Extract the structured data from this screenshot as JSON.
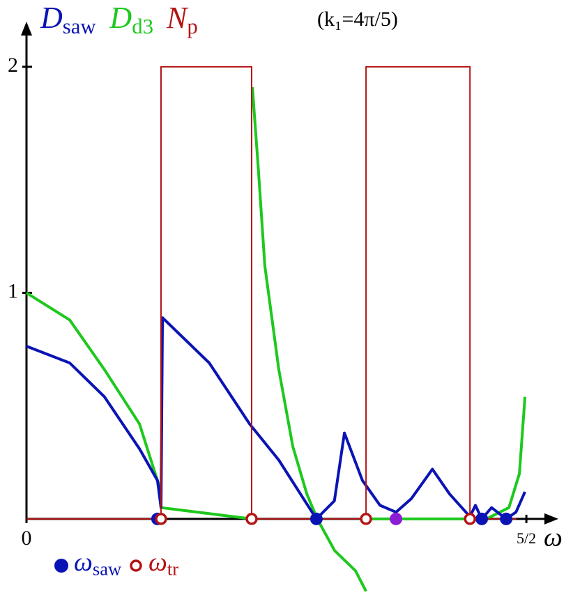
{
  "chart_data": {
    "type": "line",
    "annotation": "(k₁=4π/5)",
    "x_label": "ω",
    "xlim": [
      0,
      2.66
    ],
    "ylim": [
      -0.33,
      2.2
    ],
    "xticks": [
      0,
      {
        "value": 2.5,
        "label": "5/2"
      }
    ],
    "yticks": [
      1,
      2
    ],
    "series": [
      {
        "name": "Dsaw",
        "color": "#0a14b4",
        "x": [
          0,
          0.216,
          0.39,
          0.565,
          0.655,
          0.673,
          0.68,
          0.914,
          1.116,
          1.262,
          1.45,
          1.54,
          1.59,
          1.68,
          1.768,
          1.848,
          1.925,
          2.03,
          2.116,
          2.218,
          2.245,
          2.277,
          2.326,
          2.399,
          2.448,
          2.493
        ],
        "values": [
          0.764,
          0.69,
          0.54,
          0.31,
          0.17,
          0.05,
          0.89,
          0.69,
          0.42,
          0.26,
          0,
          0.08,
          0.38,
          0.17,
          0.06,
          0.03,
          0.09,
          0.22,
          0.11,
          0.01,
          0.06,
          0,
          0.05,
          0,
          0.03,
          0.12
        ]
      },
      {
        "name": "Dd3",
        "color": "#1ec81e",
        "x": [
          0,
          0.216,
          0.39,
          0.565,
          0.662,
          0.673,
          1.126,
          null,
          1.13,
          1.161,
          1.192,
          1.262,
          1.332,
          1.402,
          1.454,
          1.541,
          1.646,
          1.698,
          null,
          1.698,
          2.3,
          2.413,
          2.465,
          2.493
        ],
        "values": [
          1.0,
          0.88,
          0.66,
          0.42,
          0.15,
          0.05,
          0,
          null,
          1.91,
          1.53,
          1.12,
          0.66,
          0.32,
          0.11,
          0,
          -0.14,
          -0.23,
          -0.32,
          null,
          0,
          0,
          0.05,
          0.2,
          0.54
        ]
      },
      {
        "name": "Np",
        "color": "#b41414",
        "x": [
          0,
          0.673,
          0.673,
          1.126,
          1.126,
          1.698,
          1.698,
          2.218,
          2.218,
          2.45
        ],
        "values": [
          0,
          0,
          2,
          2,
          0,
          0,
          2,
          2,
          0,
          0
        ]
      }
    ],
    "markers": [
      {
        "name": "ωsaw",
        "color": "#0a14b4",
        "filled": true,
        "x": [
          0.655,
          1.45,
          2.277,
          2.399
        ],
        "values": [
          0,
          0,
          0,
          0
        ]
      },
      {
        "name": "ωtr",
        "color": "#b41414",
        "filled": false,
        "x": [
          0.673,
          1.126,
          1.698,
          2.218
        ],
        "values": [
          0,
          0,
          0,
          0
        ]
      },
      {
        "color": "#8c1ed2",
        "filled": true,
        "x": [
          1.848
        ],
        "values": [
          0
        ]
      }
    ]
  }
}
